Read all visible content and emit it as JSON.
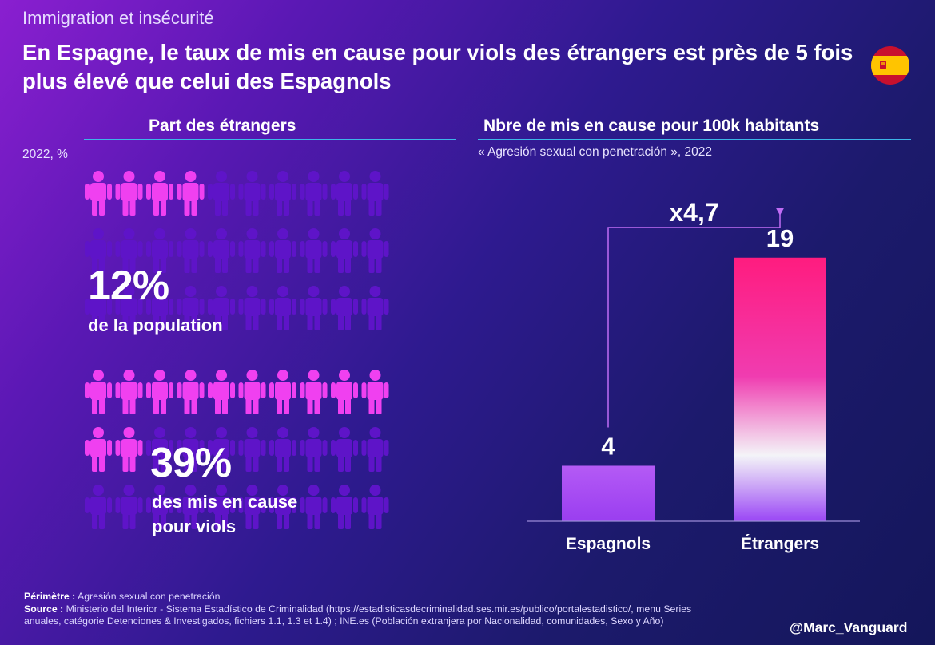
{
  "kicker": "Immigration et insécurité",
  "headline": "En Espagne, le taux de mis en cause pour viols des étrangers est près de 5 fois plus élevé que celui des Espagnols",
  "left": {
    "title": "Part des étrangers",
    "note": "2022, %",
    "stat1": {
      "value": "12%",
      "label": "de la population",
      "share": 0.12
    },
    "stat2": {
      "value": "39%",
      "label_line1": "des mis en cause",
      "label_line2": "pour viols",
      "share": 0.39
    }
  },
  "right": {
    "title": "Nbre de mis en cause pour 100k habitants",
    "note": "« Agresión sexual con penetración », 2022"
  },
  "chart_data": {
    "type": "bar",
    "categories": [
      "Espagnols",
      "Étrangers"
    ],
    "values": [
      4,
      19
    ],
    "value_labels": [
      "4",
      "19"
    ],
    "annotation": "x4,7",
    "ylim": [
      0,
      21
    ],
    "grid": false,
    "colors": {
      "bar_espagnols": "#a246f0",
      "bar_etrangers_top": "#ff1c7f",
      "bar_etrangers_bottom": "#9a46f5"
    }
  },
  "footer": {
    "perimetre_label": "Périmètre :",
    "perimetre_text": "Agresión sexual con penetración",
    "source_label": "Source :",
    "source_text": "Ministerio del Interior - Sistema Estadístico de Criminalidad (https://estadisticasdecriminalidad.ses.mir.es/publico/portalestadistico/, menu Series anuales, catégorie Detenciones & Investigados, fichiers 1.1, 1.3 et 1.4) ; INE.es (Población extranjera por Nacionalidad, comunidades, Sexo y Año)"
  },
  "handle": "@Marc_Vanguard",
  "colors": {
    "icon_highlight": "#f040f0",
    "icon_dim": "#5e14c8",
    "rule": "#3db6e8"
  },
  "icons": {
    "person": "person-icon",
    "flag": "spain-flag-icon"
  }
}
